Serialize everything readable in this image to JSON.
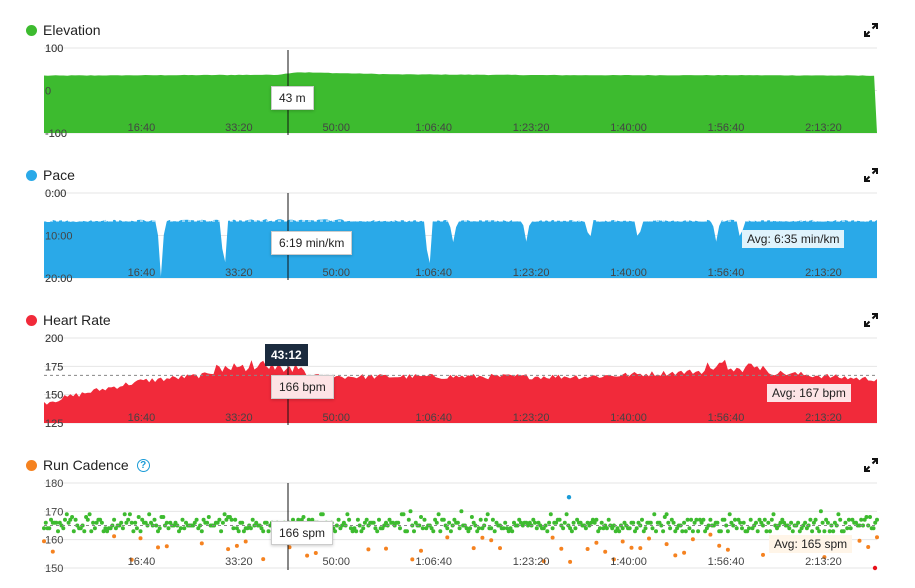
{
  "cursor": {
    "time": "43:12"
  },
  "x_ticks": [
    "16:40",
    "33:20",
    "50:00",
    "1:06:40",
    "1:23:20",
    "1:40:00",
    "1:56:40",
    "2:13:20"
  ],
  "panels": {
    "elevation": {
      "title": "Elevation",
      "color": "#3dbb2f",
      "tooltip": "43 m",
      "y_ticks": [
        "100",
        "0",
        "-100"
      ]
    },
    "pace": {
      "title": "Pace",
      "color": "#2aa9e8",
      "tooltip": "6:19 min/km",
      "avg": "Avg: 6:35 min/km",
      "y_ticks": [
        "0:00",
        "10:00",
        "20:00"
      ]
    },
    "heart_rate": {
      "title": "Heart Rate",
      "color": "#f12a3a",
      "tooltip": "166 bpm",
      "avg": "Avg: 167 bpm",
      "y_ticks": [
        "200",
        "175",
        "150",
        "125"
      ]
    },
    "cadence": {
      "title": "Run Cadence",
      "color": "#f58220",
      "tooltip": "166 spm",
      "avg": "Avg: 165 spm",
      "y_ticks": [
        "180",
        "170",
        "160",
        "150"
      ]
    }
  },
  "icons": {
    "expand": "expand-arrows-icon",
    "help": "help-circle-icon"
  },
  "chart_data": [
    {
      "type": "area",
      "title": "Elevation",
      "ylabel": "",
      "ylim": [
        -100,
        100
      ],
      "x_ticks": [
        "16:40",
        "33:20",
        "50:00",
        "1:06:40",
        "1:23:20",
        "1:40:00",
        "1:56:40",
        "2:13:20"
      ],
      "series": [
        {
          "x": [
            0,
            1200,
            2400,
            2592,
            3600,
            5400,
            7200,
            8400
          ],
          "values": [
            35,
            36,
            37,
            43,
            38,
            36,
            36,
            35
          ]
        }
      ],
      "annotation": "43 m",
      "grid": true
    },
    {
      "type": "area",
      "title": "Pace",
      "ylabel": "",
      "ylim": [
        "0:00",
        "20:00"
      ],
      "inverted": true,
      "x_ticks": [
        "16:40",
        "33:20",
        "50:00",
        "1:06:40",
        "1:23:20",
        "1:40:00",
        "1:56:40",
        "2:13:20"
      ],
      "series": [
        {
          "x": [
            0,
            1000,
            1800,
            2592,
            3600,
            5400,
            6700,
            8400
          ],
          "values_min_per_km": [
            6.6,
            6.5,
            6.5,
            6.3,
            6.6,
            6.6,
            6.5,
            6.6
          ]
        }
      ],
      "average": "6:35",
      "annotation": "6:19 min/km",
      "grid": true
    },
    {
      "type": "area",
      "title": "Heart Rate",
      "ylabel": "",
      "ylim": [
        125,
        200
      ],
      "x_ticks": [
        "16:40",
        "33:20",
        "50:00",
        "1:06:40",
        "1:23:20",
        "1:40:00",
        "1:56:40",
        "2:13:20"
      ],
      "series": [
        {
          "x": [
            0,
            500,
            1000,
            2000,
            2592,
            4000,
            5600,
            7100,
            8400
          ],
          "values": [
            143,
            153,
            162,
            170,
            166,
            166,
            166,
            172,
            164
          ]
        }
      ],
      "average": 167,
      "annotation": "166 bpm",
      "grid": true
    },
    {
      "type": "scatter",
      "title": "Run Cadence",
      "ylabel": "",
      "ylim": [
        150,
        180
      ],
      "x_ticks": [
        "16:40",
        "33:20",
        "50:00",
        "1:06:40",
        "1:23:20",
        "1:40:00",
        "1:56:40",
        "2:13:20"
      ],
      "series": [
        {
          "name": "",
          "color": "#3dbb2f",
          "typical_range": [
            164,
            172
          ]
        },
        {
          "name": "",
          "color": "#f58220",
          "typical_range": [
            151,
            163
          ]
        },
        {
          "name": "",
          "color": "#1a9bd7",
          "values": [
            175
          ]
        },
        {
          "name": "",
          "color": "#e8101a",
          "values": [
            150
          ]
        }
      ],
      "average": 165,
      "annotation": "166 spm",
      "grid": true
    }
  ]
}
